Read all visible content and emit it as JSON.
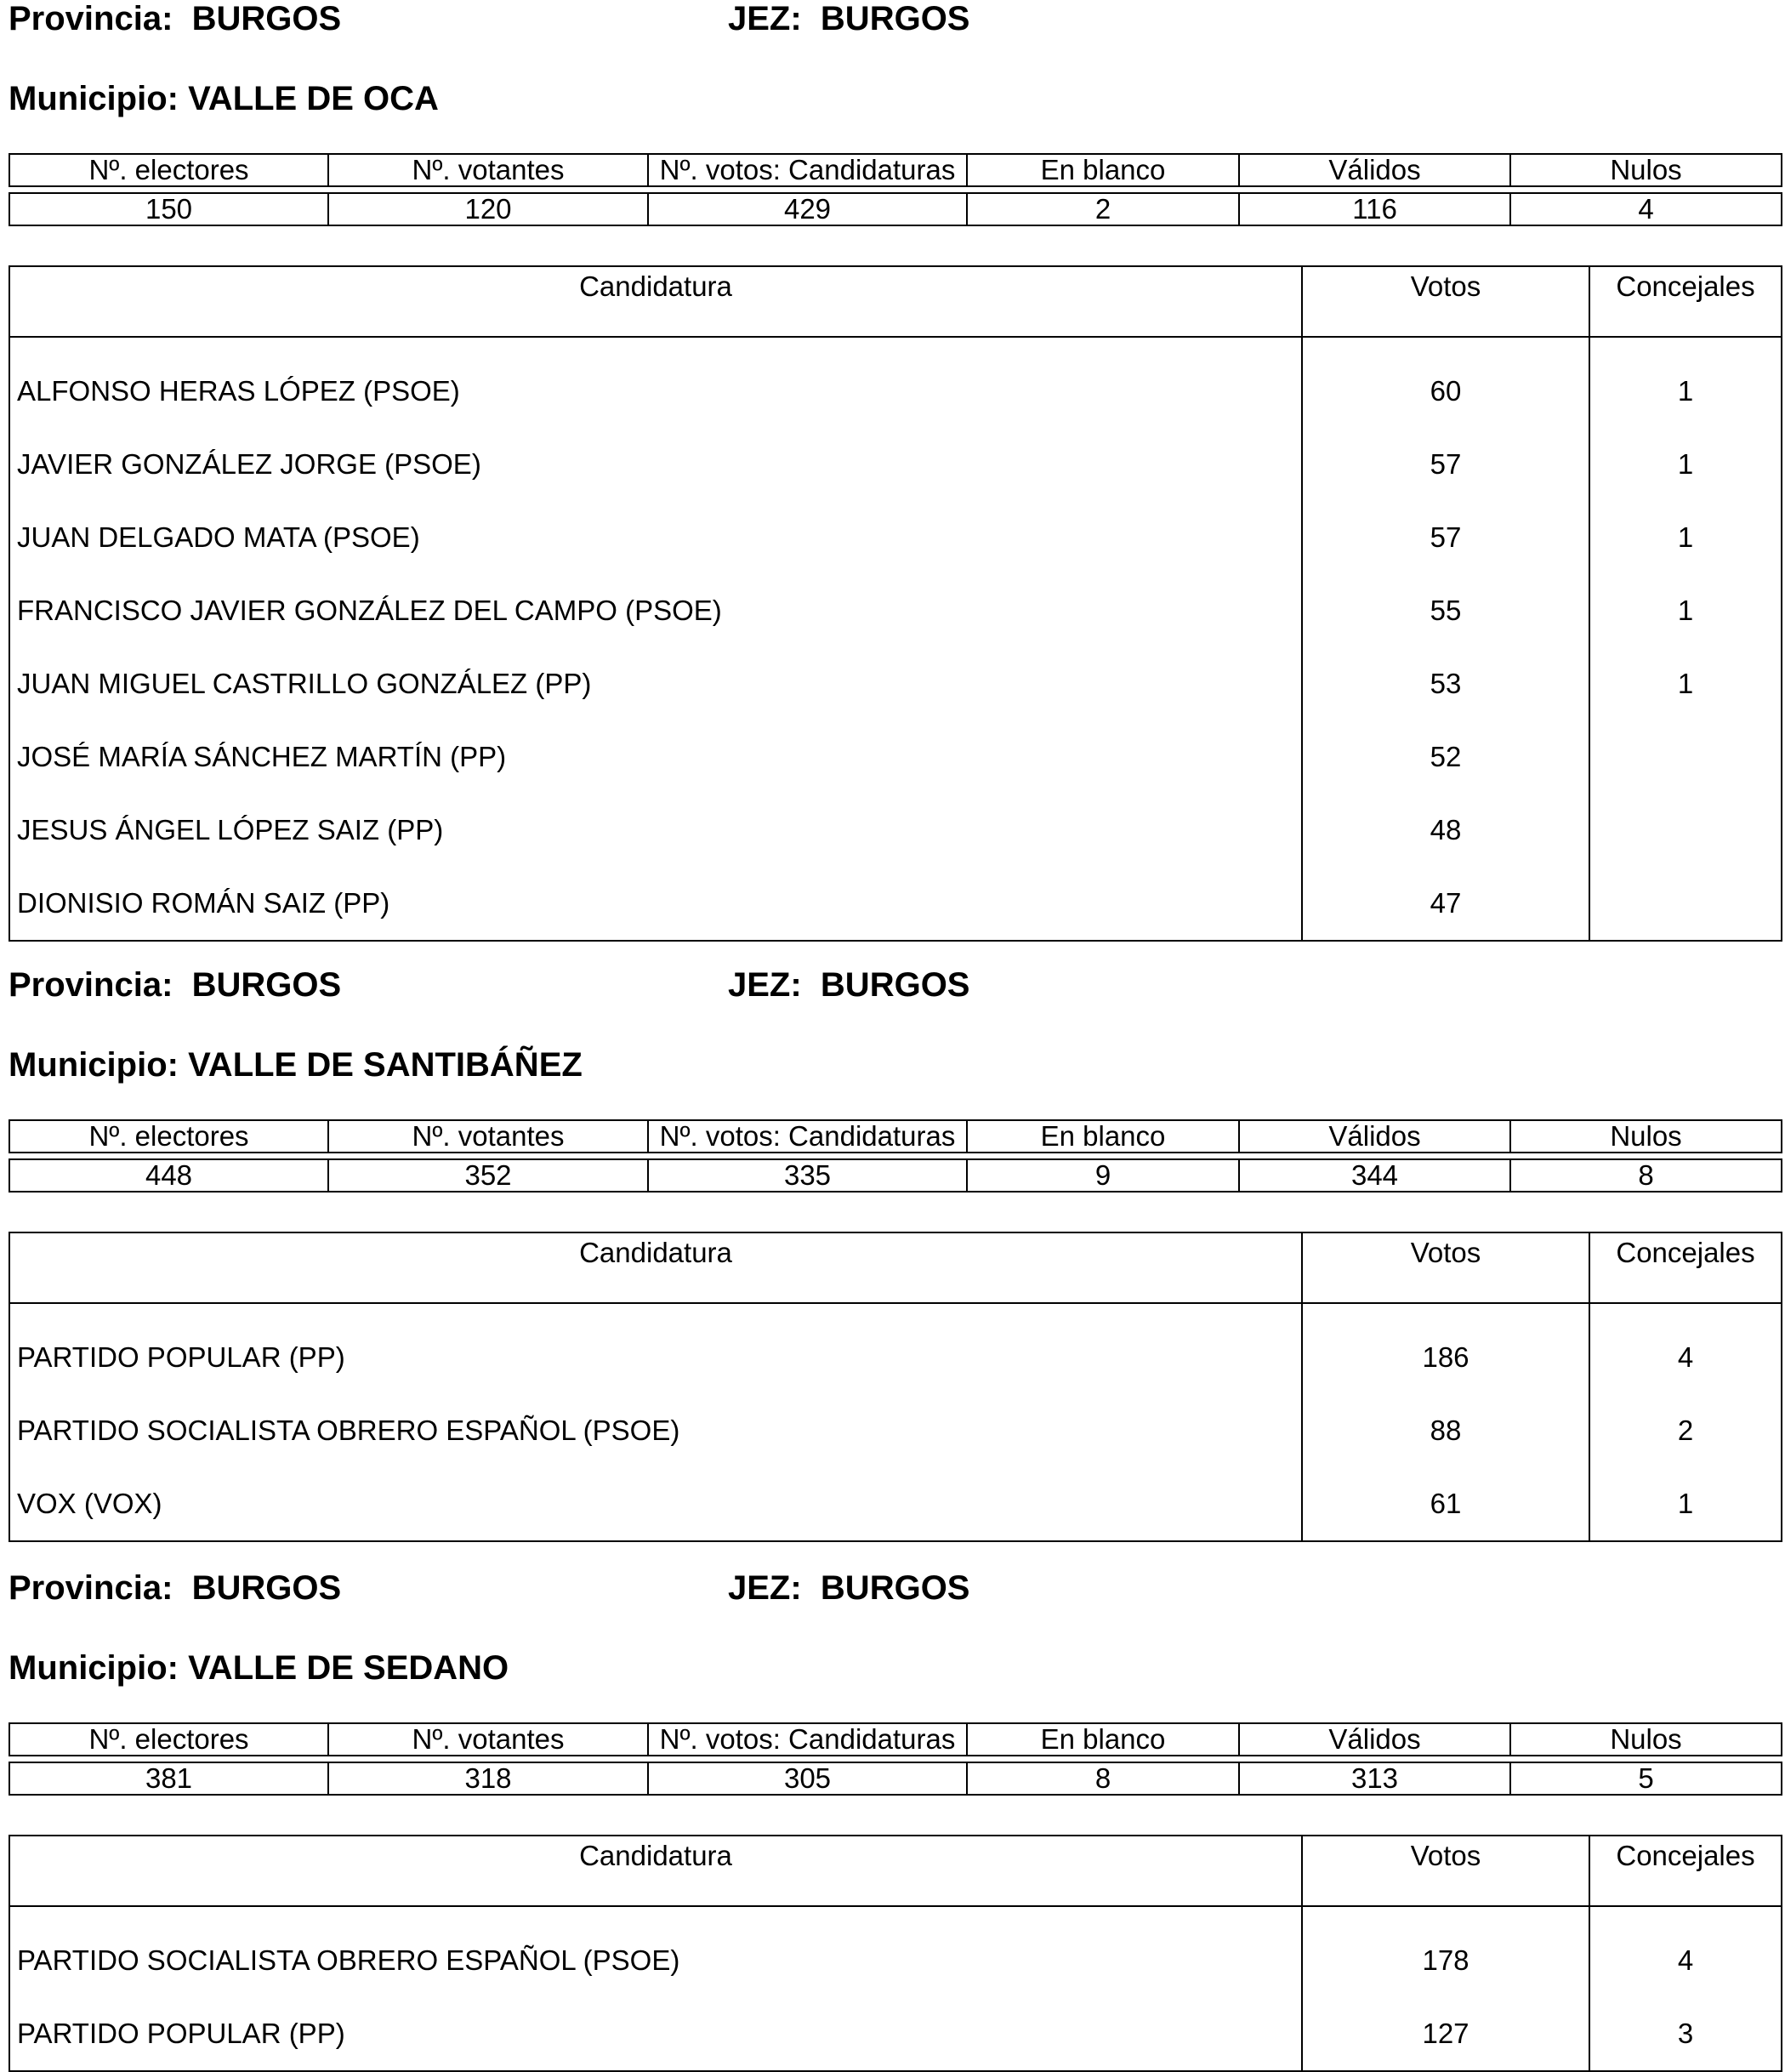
{
  "labels": {
    "provincia": "Provincia:",
    "jez": "JEZ:",
    "municipio": "Municipio:",
    "stats_headers": [
      "Nº. electores",
      "Nº. votantes",
      "Nº. votos: Candidaturas",
      "En blanco",
      "Válidos",
      "Nulos"
    ],
    "cand_headers": [
      "Candidatura",
      "Votos",
      "Concejales"
    ]
  },
  "sections": [
    {
      "provincia": "BURGOS",
      "jez": "BURGOS",
      "municipio": "VALLE DE OCA",
      "stats": [
        "150",
        "120",
        "429",
        "2",
        "116",
        "4"
      ],
      "candidates": [
        {
          "name": "ALFONSO HERAS LÓPEZ (PSOE)",
          "votos": "60",
          "concejales": "1"
        },
        {
          "name": "JAVIER GONZÁLEZ JORGE (PSOE)",
          "votos": "57",
          "concejales": "1"
        },
        {
          "name": "JUAN DELGADO MATA (PSOE)",
          "votos": "57",
          "concejales": "1"
        },
        {
          "name": "FRANCISCO JAVIER GONZÁLEZ DEL CAMPO (PSOE)",
          "votos": "55",
          "concejales": "1"
        },
        {
          "name": "JUAN MIGUEL CASTRILLO GONZÁLEZ (PP)",
          "votos": "53",
          "concejales": "1"
        },
        {
          "name": "JOSÉ MARÍA SÁNCHEZ MARTÍN (PP)",
          "votos": "52",
          "concejales": ""
        },
        {
          "name": "JESUS ÁNGEL LÓPEZ SAIZ (PP)",
          "votos": "48",
          "concejales": ""
        },
        {
          "name": "DIONISIO ROMÁN SAIZ (PP)",
          "votos": "47",
          "concejales": ""
        }
      ]
    },
    {
      "provincia": "BURGOS",
      "jez": "BURGOS",
      "municipio": "VALLE DE SANTIBÁÑEZ",
      "stats": [
        "448",
        "352",
        "335",
        "9",
        "344",
        "8"
      ],
      "candidates": [
        {
          "name": "PARTIDO POPULAR (PP)",
          "votos": "186",
          "concejales": "4"
        },
        {
          "name": "PARTIDO SOCIALISTA OBRERO ESPAÑOL (PSOE)",
          "votos": "88",
          "concejales": "2"
        },
        {
          "name": "VOX (VOX)",
          "votos": "61",
          "concejales": "1"
        }
      ]
    },
    {
      "provincia": "BURGOS",
      "jez": "BURGOS",
      "municipio": "VALLE DE SEDANO",
      "stats": [
        "381",
        "318",
        "305",
        "8",
        "313",
        "5"
      ],
      "candidates": [
        {
          "name": "PARTIDO SOCIALISTA OBRERO ESPAÑOL (PSOE)",
          "votos": "178",
          "concejales": "4"
        },
        {
          "name": "PARTIDO POPULAR (PP)",
          "votos": "127",
          "concejales": "3"
        }
      ]
    }
  ]
}
